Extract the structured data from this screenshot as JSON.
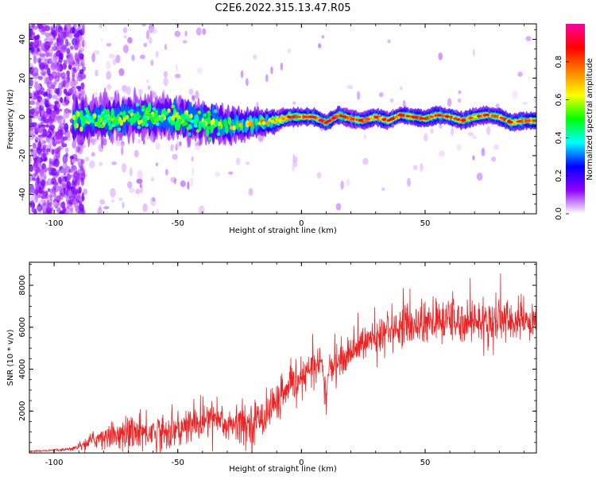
{
  "title": "C2E6.2022.315.13.47.R05",
  "colors": {
    "snr_line": "#ee2222",
    "axis": "#000000",
    "background": "#ffffff"
  },
  "chart_data": [
    {
      "type": "heatmap",
      "xlabel": "Height of straight line (km)",
      "ylabel": "Frequency (Hz)",
      "xlim": [
        -110,
        95
      ],
      "ylim": [
        -50,
        48
      ],
      "xticks": [
        "-100",
        "-50",
        "0",
        "50"
      ],
      "yticks": [
        "-40",
        "-20",
        "0",
        "20",
        "40"
      ],
      "colorbar": {
        "label": "Normalized spectral amplitude",
        "range": [
          0,
          1
        ],
        "ticks": [
          "0.0",
          "0.2",
          "0.4",
          "0.6",
          "0.8"
        ],
        "colormap": [
          "#ffffff",
          "#8f00ff",
          "#0000ff",
          "#00ffff",
          "#00ff00",
          "#ffff00",
          "#ff8000",
          "#ff0000",
          "#ff00a0"
        ]
      },
      "ridge": {
        "description_values": "dominant frequency (Hz) vs height (km)",
        "x": [
          -90,
          -80,
          -70,
          -60,
          -50,
          -40,
          -35,
          -30,
          -25,
          -20,
          -15,
          -10,
          -5,
          0,
          5,
          10,
          15,
          20,
          25,
          30,
          35,
          40,
          45,
          50,
          55,
          60,
          65,
          70,
          75,
          80,
          85,
          90,
          95
        ],
        "y": [
          -2,
          -1,
          0,
          0,
          -1,
          -2,
          -3,
          -5,
          -4,
          -3,
          -3,
          -2,
          0,
          0,
          0,
          -3,
          1,
          -1,
          -2,
          0,
          -2,
          1,
          0,
          -1,
          1,
          0,
          -2,
          0,
          1,
          0,
          -3,
          -2,
          -2
        ]
      }
    },
    {
      "type": "line",
      "xlabel": "Height of straight line (km)",
      "ylabel": "SNR (10 * v/v)",
      "xlim": [
        -110,
        95
      ],
      "ylim": [
        0,
        9100
      ],
      "xticks": [
        "-100",
        "-50",
        "0",
        "50"
      ],
      "yticks": [
        "2000",
        "4000",
        "6000",
        "8000"
      ],
      "series": [
        {
          "trend_x": [
            -110,
            -100,
            -95,
            -90,
            -85,
            -80,
            -70,
            -60,
            -50,
            -40,
            -35,
            -30,
            -20,
            -15,
            -10,
            -5,
            0,
            5,
            8,
            10,
            11,
            15,
            20,
            25,
            30,
            35,
            40,
            50,
            60,
            70,
            80,
            90,
            95
          ],
          "trend_y": [
            80,
            120,
            150,
            300,
            600,
            800,
            1000,
            1000,
            1100,
            1500,
            1800,
            1300,
            1400,
            1800,
            2500,
            3000,
            3500,
            4200,
            4500,
            2500,
            4000,
            4300,
            4800,
            5300,
            5400,
            5900,
            6100,
            6200,
            6300,
            6300,
            6300,
            6300,
            6400
          ],
          "noise_amplitude": [
            30,
            40,
            60,
            150,
            350,
            500,
            700,
            800,
            800,
            900,
            1000,
            800,
            900,
            900,
            800,
            700,
            700,
            700,
            700,
            800,
            700,
            700,
            700,
            700,
            800,
            900,
            900,
            1000,
            1000,
            1000,
            1000,
            900,
            900
          ]
        }
      ]
    }
  ]
}
